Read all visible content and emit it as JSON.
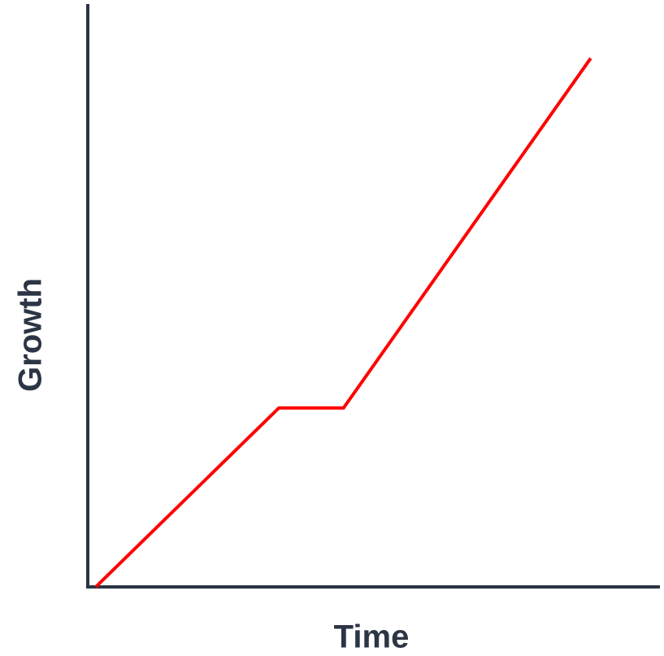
{
  "chart_data": {
    "type": "line",
    "x_label": "Time",
    "y_label": "Growth",
    "x": [
      1.4,
      33.4,
      44.7,
      87.9
    ],
    "series": [
      {
        "color": "#ff0000",
        "values": [
          0,
          30.7,
          30.7,
          90.7
        ]
      }
    ],
    "xlim": [
      0,
      100
    ],
    "ylim": [
      0,
      100
    ]
  }
}
